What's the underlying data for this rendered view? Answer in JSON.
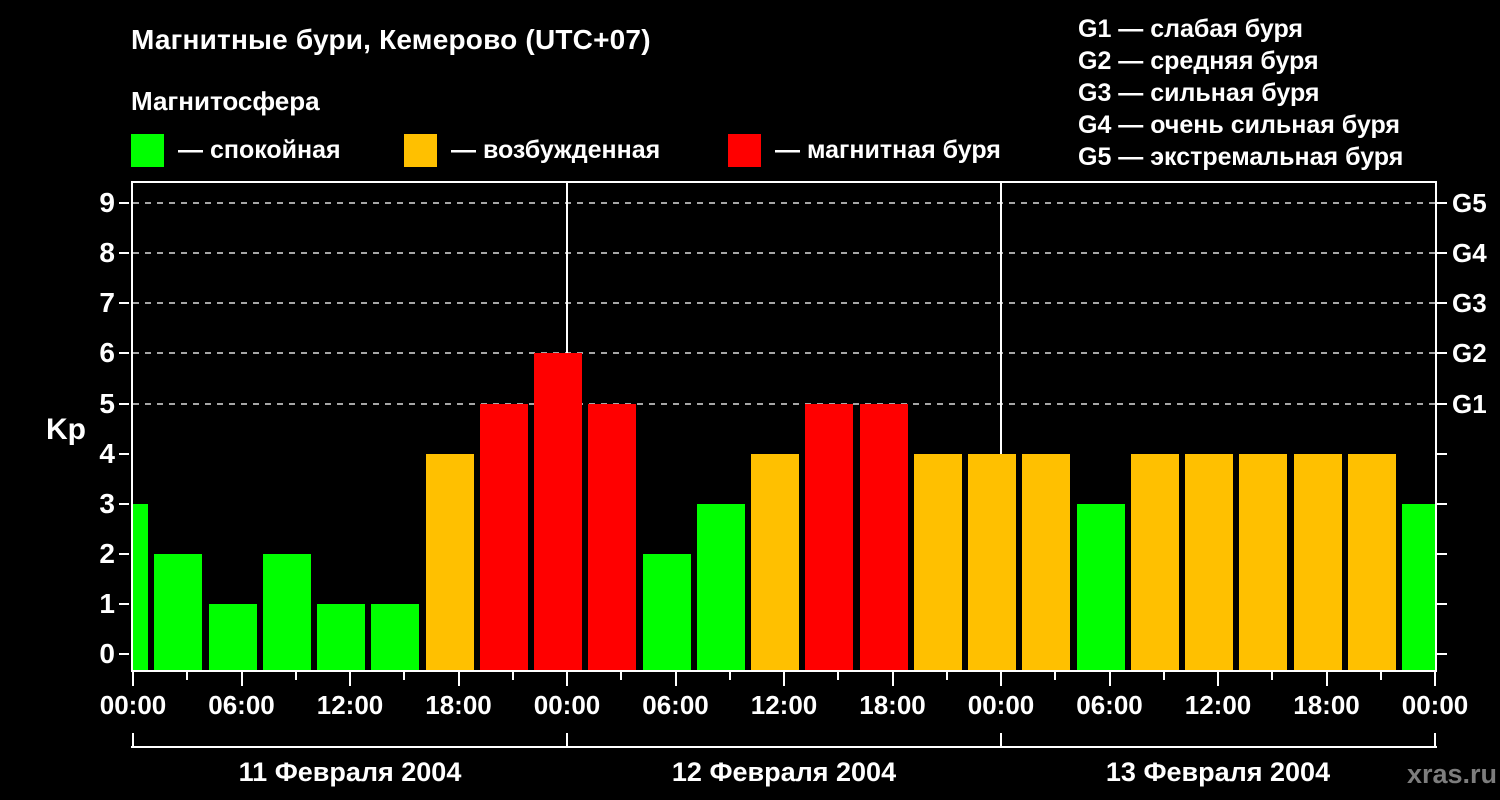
{
  "header": {
    "title": "Магнитные бури, Кемерово (UTC+07)",
    "subtitle": "Магнитосфера"
  },
  "legend": {
    "items": [
      {
        "state": "quiet",
        "label": "— спокойная",
        "color": "#00ff00"
      },
      {
        "state": "unsettled",
        "label": "— возбужденная",
        "color": "#ffc000"
      },
      {
        "state": "storm",
        "label": "— магнитная буря",
        "color": "#ff0000"
      }
    ]
  },
  "g_legend": {
    "items": [
      "G1 — слабая буря",
      "G2 — средняя буря",
      "G3 — сильная буря",
      "G4 — очень сильная буря",
      "G5 — экстремальная буря"
    ]
  },
  "watermark": "xras.ru",
  "chart_data": {
    "type": "bar",
    "title": "Магнитные бури, Кемерово (UTC+07)",
    "ylabel": "Kp",
    "ylim": [
      0,
      9.4
    ],
    "yticks": [
      0,
      1,
      2,
      3,
      4,
      5,
      6,
      7,
      8,
      9
    ],
    "grid_levels": [
      5,
      6,
      7,
      8,
      9
    ],
    "grid_on": true,
    "right_axis": [
      {
        "value": 5,
        "label": "G1"
      },
      {
        "value": 6,
        "label": "G2"
      },
      {
        "value": 7,
        "label": "G3"
      },
      {
        "value": 8,
        "label": "G4"
      },
      {
        "value": 9,
        "label": "G5"
      }
    ],
    "x_span_hours": 72,
    "x_tick_step_hours": 3,
    "x_label_step_hours": 6,
    "x_tick_labels": [
      "00:00",
      "06:00",
      "12:00",
      "18:00",
      "00:00",
      "06:00",
      "12:00",
      "18:00",
      "00:00",
      "06:00",
      "12:00",
      "18:00",
      "00:00"
    ],
    "days": [
      "11 Февраля 2004",
      "12 Февраля 2004",
      "13 Февраля 2004"
    ],
    "colors": {
      "quiet": "#00ff00",
      "unsettled": "#ffc000",
      "storm": "#ff0000"
    },
    "bars": [
      {
        "day": "11 Февраля 2004",
        "time": "00:00",
        "kp": 3,
        "state": "quiet"
      },
      {
        "day": "11 Февраля 2004",
        "time": "03:00",
        "kp": 2,
        "state": "quiet"
      },
      {
        "day": "11 Февраля 2004",
        "time": "06:00",
        "kp": 1,
        "state": "quiet"
      },
      {
        "day": "11 Февраля 2004",
        "time": "09:00",
        "kp": 2,
        "state": "quiet"
      },
      {
        "day": "11 Февраля 2004",
        "time": "12:00",
        "kp": 1,
        "state": "quiet"
      },
      {
        "day": "11 Февраля 2004",
        "time": "15:00",
        "kp": 1,
        "state": "quiet"
      },
      {
        "day": "11 Февраля 2004",
        "time": "18:00",
        "kp": 4,
        "state": "unsettled"
      },
      {
        "day": "11 Февраля 2004",
        "time": "21:00",
        "kp": 5,
        "state": "storm"
      },
      {
        "day": "12 Февраля 2004",
        "time": "00:00",
        "kp": 6,
        "state": "storm"
      },
      {
        "day": "12 Февраля 2004",
        "time": "03:00",
        "kp": 5,
        "state": "storm"
      },
      {
        "day": "12 Февраля 2004",
        "time": "06:00",
        "kp": 2,
        "state": "quiet"
      },
      {
        "day": "12 Февраля 2004",
        "time": "09:00",
        "kp": 3,
        "state": "quiet"
      },
      {
        "day": "12 Февраля 2004",
        "time": "12:00",
        "kp": 4,
        "state": "unsettled"
      },
      {
        "day": "12 Февраля 2004",
        "time": "15:00",
        "kp": 5,
        "state": "storm"
      },
      {
        "day": "12 Февраля 2004",
        "time": "18:00",
        "kp": 5,
        "state": "storm"
      },
      {
        "day": "12 Февраля 2004",
        "time": "21:00",
        "kp": 4,
        "state": "unsettled"
      },
      {
        "day": "13 Февраля 2004",
        "time": "00:00",
        "kp": 4,
        "state": "unsettled"
      },
      {
        "day": "13 Февраля 2004",
        "time": "03:00",
        "kp": 4,
        "state": "unsettled"
      },
      {
        "day": "13 Февраля 2004",
        "time": "06:00",
        "kp": 3,
        "state": "quiet"
      },
      {
        "day": "13 Февраля 2004",
        "time": "09:00",
        "kp": 4,
        "state": "unsettled"
      },
      {
        "day": "13 Февраля 2004",
        "time": "12:00",
        "kp": 4,
        "state": "unsettled"
      },
      {
        "day": "13 Февраля 2004",
        "time": "15:00",
        "kp": 4,
        "state": "unsettled"
      },
      {
        "day": "13 Февраля 2004",
        "time": "18:00",
        "kp": 4,
        "state": "unsettled"
      },
      {
        "day": "13 Февраля 2004",
        "time": "21:00",
        "kp": 4,
        "state": "unsettled"
      },
      {
        "day": "13 Февраля 2004",
        "time": "24:00",
        "kp": 3,
        "state": "quiet"
      }
    ],
    "day_boundary_hours": [
      24,
      48
    ]
  }
}
